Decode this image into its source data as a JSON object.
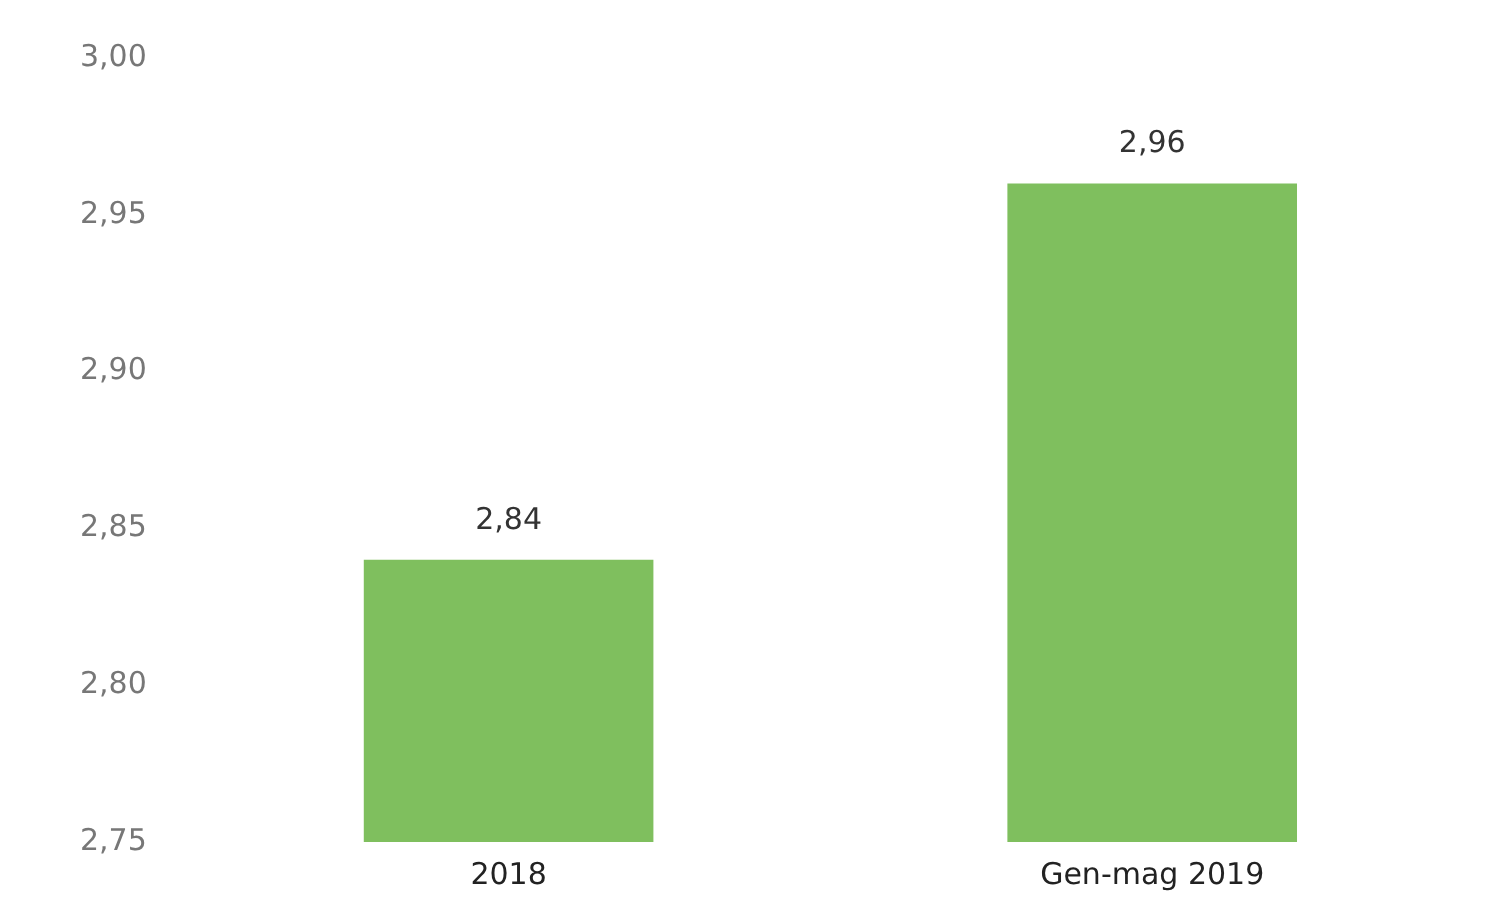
{
  "chart_data": {
    "type": "bar",
    "categories": [
      "2018",
      "Gen-mag 2019"
    ],
    "values": [
      2.84,
      2.96
    ],
    "color": "#7fbf5e",
    "value_labels": [
      "2,84",
      "2,96"
    ],
    "ylim": [
      2.75,
      3.0
    ],
    "yticks": [
      {
        "value": 2.75,
        "label": "2,75"
      },
      {
        "value": 2.8,
        "label": "2,80"
      },
      {
        "value": 2.85,
        "label": "2,85"
      },
      {
        "value": 2.9,
        "label": "2,90"
      },
      {
        "value": 2.95,
        "label": "2,95"
      },
      {
        "value": 3.0,
        "label": "3,00"
      }
    ],
    "grid": false,
    "legend": false
  }
}
